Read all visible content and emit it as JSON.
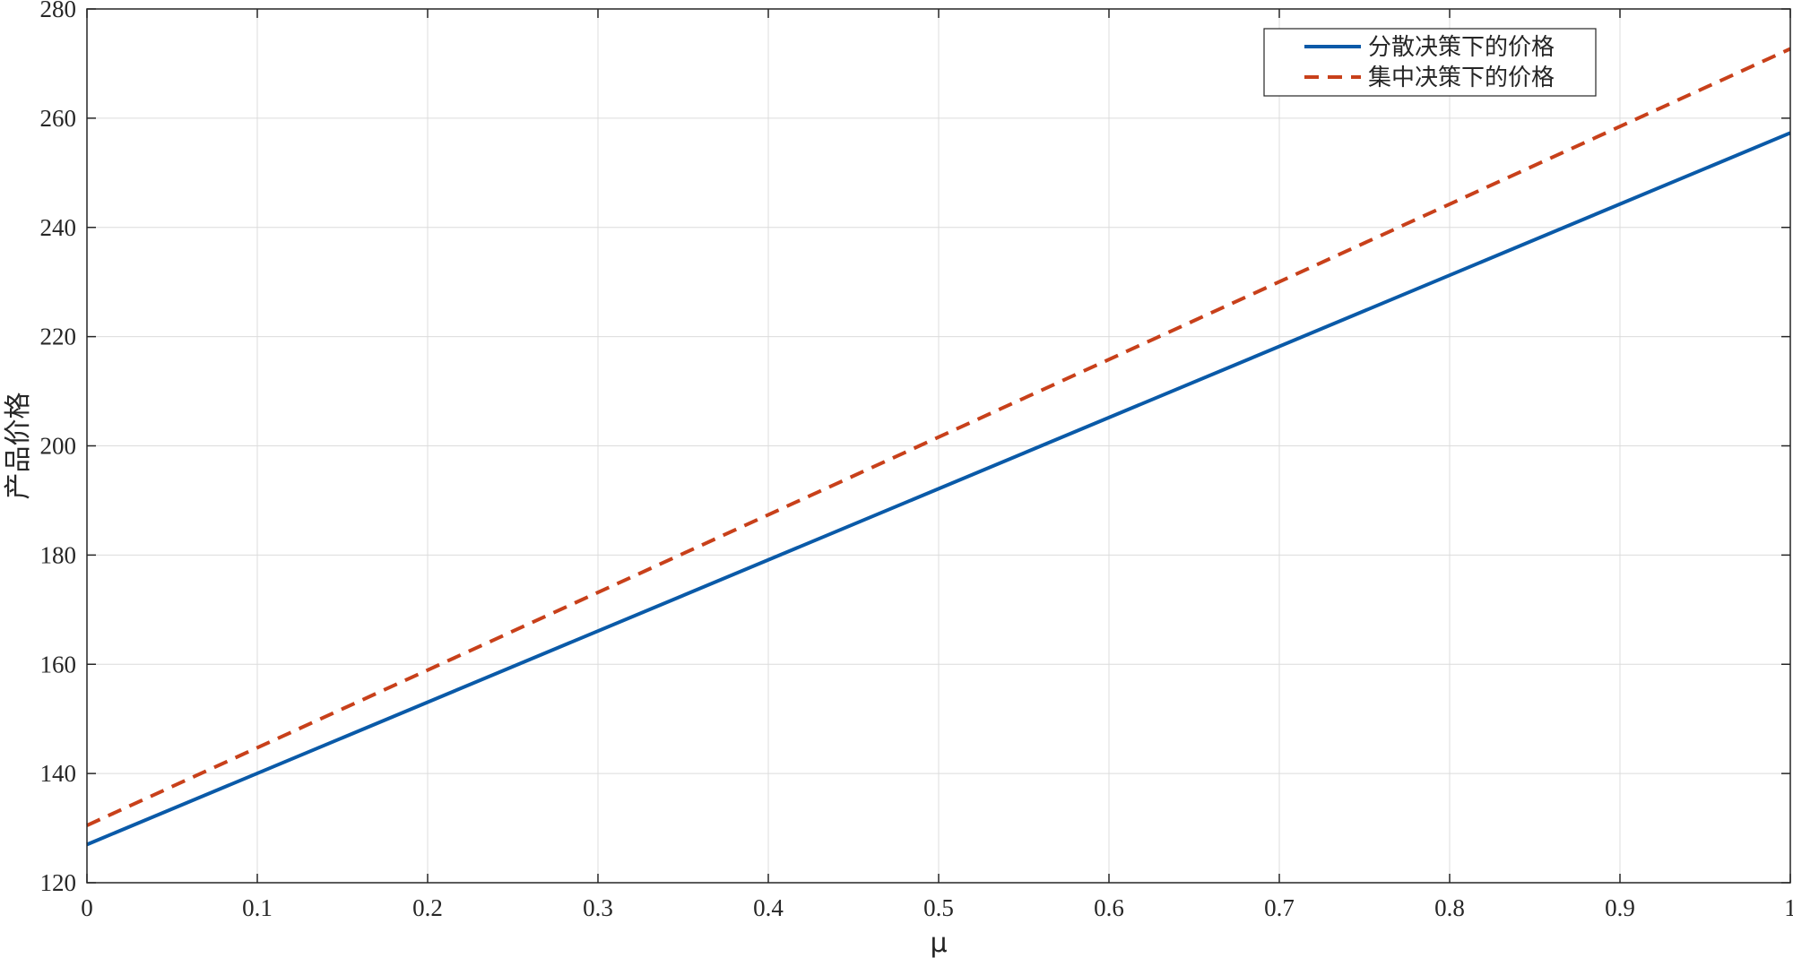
{
  "chart_data": {
    "type": "line",
    "title": "",
    "xlabel": "μ",
    "ylabel": "产品价格",
    "xlim": [
      0,
      1
    ],
    "ylim": [
      120,
      280
    ],
    "xticks": [
      0,
      0.1,
      0.2,
      0.3,
      0.4,
      0.5,
      0.6,
      0.7,
      0.8,
      0.9,
      1
    ],
    "xtick_labels": [
      "0",
      "0.1",
      "0.2",
      "0.3",
      "0.4",
      "0.5",
      "0.6",
      "0.7",
      "0.8",
      "0.9",
      "1"
    ],
    "yticks": [
      120,
      140,
      160,
      180,
      200,
      220,
      240,
      260,
      280
    ],
    "ytick_labels": [
      "120",
      "140",
      "160",
      "180",
      "200",
      "220",
      "240",
      "260",
      "280"
    ],
    "grid": true,
    "legend_position": "top-right",
    "x": [
      0,
      1
    ],
    "series": [
      {
        "name": "分散决策下的价格",
        "values": [
          127.0,
          257.3
        ],
        "color": "#0a5aa8",
        "style": "solid"
      },
      {
        "name": "集中决策下的价格",
        "values": [
          130.5,
          272.7
        ],
        "color": "#c8401a",
        "style": "dashed"
      }
    ]
  }
}
